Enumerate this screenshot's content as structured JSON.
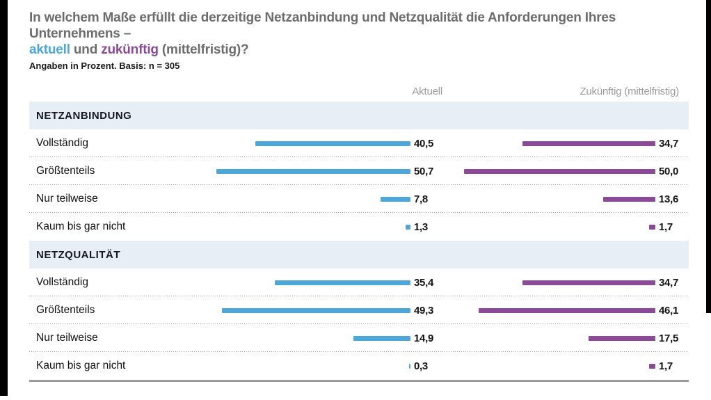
{
  "title": {
    "line1": "In welchem Maße erfüllt die derzeitige Netzanbindung und Netzqualität die Anforderungen Ihres Unternehmens –",
    "line2_part1": "aktuell",
    "line2_part2": " und ",
    "line2_part3": "zukünftig",
    "line2_part4": " (mittelfristig)?"
  },
  "subtitle": "Angaben in Prozent. Basis: n = 305",
  "columns": {
    "aktuell": "Aktuell",
    "zukunftig": "Zukünftig (mittelfristig)"
  },
  "colors": {
    "aktuell": "#4da7d9",
    "zukunftig": "#8b4997",
    "band_bg": "#e7eef6",
    "title_gray": "#6d6d6d"
  },
  "sections": [
    {
      "header": "NETZANBINDUNG",
      "rows": [
        {
          "label": "Vollständig",
          "aktuell": "40,5",
          "zukunftig": "34,7"
        },
        {
          "label": "Größtenteils",
          "aktuell": "50,7",
          "zukunftig": "50,0"
        },
        {
          "label": "Nur teilweise",
          "aktuell": "7,8",
          "zukunftig": "13,6"
        },
        {
          "label": "Kaum bis gar nicht",
          "aktuell": "1,3",
          "zukunftig": "1,7"
        }
      ]
    },
    {
      "header": "NETZQUALITÄT",
      "rows": [
        {
          "label": "Vollständig",
          "aktuell": "35,4",
          "zukunftig": "34,7"
        },
        {
          "label": "Größtenteils",
          "aktuell": "49,3",
          "zukunftig": "46,1"
        },
        {
          "label": "Nur teilweise",
          "aktuell": "14,9",
          "zukunftig": "17,5"
        },
        {
          "label": "Kaum bis gar nicht",
          "aktuell": "0,3",
          "zukunftig": "1,7"
        }
      ]
    }
  ],
  "chart_data": {
    "type": "bar",
    "orientation": "horizontal",
    "title": "In welchem Maße erfüllt die derzeitige Netzanbindung und Netzqualität die Anforderungen Ihres Unternehmens – aktuell und zukünftig (mittelfristig)?",
    "subtitle": "Angaben in Prozent. Basis: n = 305",
    "value_unit": "percent",
    "legend": [
      "Aktuell",
      "Zukünftig (mittelfristig)"
    ],
    "groups": [
      {
        "group": "NETZANBINDUNG",
        "categories": [
          "Vollständig",
          "Größtenteils",
          "Nur teilweise",
          "Kaum bis gar nicht"
        ],
        "series": [
          {
            "name": "Aktuell",
            "values": [
              40.5,
              50.7,
              7.8,
              1.3
            ]
          },
          {
            "name": "Zukünftig (mittelfristig)",
            "values": [
              34.7,
              50.0,
              13.6,
              1.7
            ]
          }
        ]
      },
      {
        "group": "NETZQUALITÄT",
        "categories": [
          "Vollständig",
          "Größtenteils",
          "Nur teilweise",
          "Kaum bis gar nicht"
        ],
        "series": [
          {
            "name": "Aktuell",
            "values": [
              35.4,
              49.3,
              14.9,
              0.3
            ]
          },
          {
            "name": "Zukünftig (mittelfristig)",
            "values": [
              34.7,
              46.1,
              17.5,
              1.7
            ]
          }
        ]
      }
    ],
    "xlim": [
      0,
      56
    ],
    "grid": false,
    "legend_position": "top as column headers"
  }
}
